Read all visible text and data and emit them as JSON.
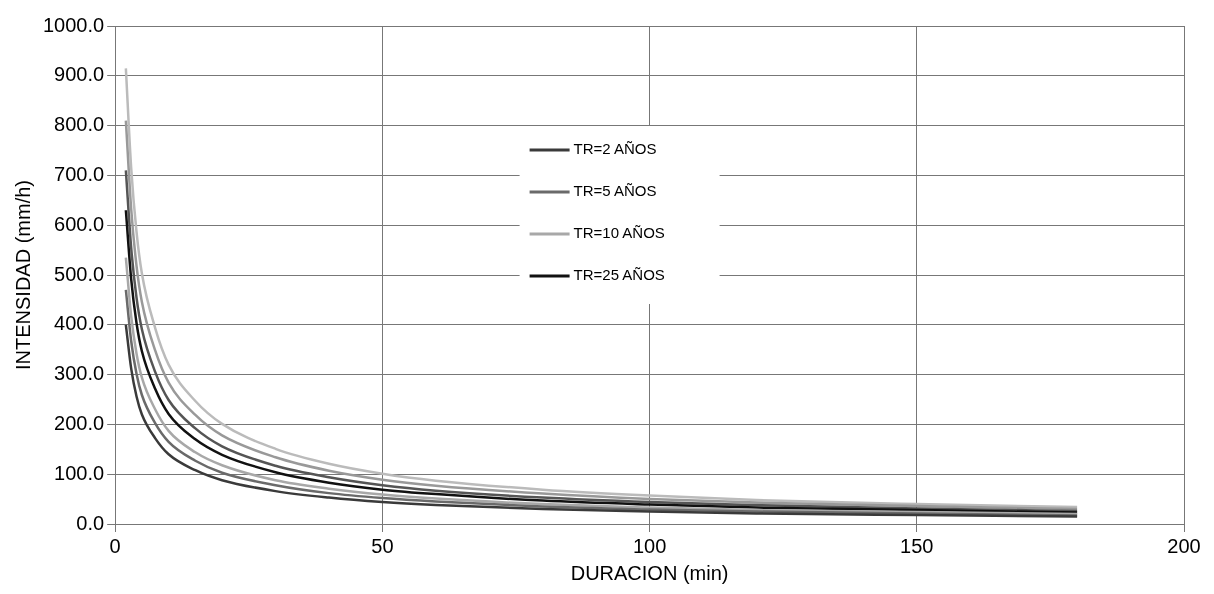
{
  "chart_data": {
    "type": "line",
    "xlabel": "DURACION (min)",
    "ylabel": "INTENSIDAD (mm/h)",
    "x": [
      2,
      3,
      4,
      5,
      7.5,
      10,
      15,
      20,
      30,
      40,
      50,
      60,
      80,
      100,
      120,
      150,
      180
    ],
    "series": [
      {
        "name": "TR=2 AÑOS",
        "color": "#3a3a3a",
        "values": [
          400,
          312,
          256,
          220,
          172,
          140,
          108,
          88,
          66,
          53,
          44,
          38,
          30,
          25,
          21,
          18,
          15
        ]
      },
      {
        "name": "TR=5 AÑOS",
        "color": "#6a6a6a",
        "values": [
          470,
          367,
          301,
          259,
          202,
          165,
          127,
          103,
          78,
          62,
          52,
          45,
          35,
          29,
          25,
          21,
          17
        ]
      },
      {
        "name": "TR=10 AÑOS",
        "color": "#a8a8a8",
        "values": [
          535,
          417,
          342,
          294,
          230,
          187,
          144,
          118,
          88,
          71,
          59,
          51,
          40,
          33,
          28,
          24,
          20
        ]
      },
      {
        "name": "TR=25 AÑOS",
        "color": "#111111",
        "values": [
          630,
          491,
          403,
          347,
          271,
          221,
          170,
          139,
          104,
          83,
          69,
          60,
          47,
          39,
          33,
          28,
          23
        ]
      },
      {
        "color": "#555555",
        "values": [
          710,
          554,
          454,
          391,
          305,
          249,
          192,
          156,
          117,
          94,
          78,
          67,
          53,
          44,
          38,
          31,
          26
        ]
      },
      {
        "color": "#999999",
        "values": [
          810,
          632,
          518,
          446,
          348,
          284,
          219,
          178,
          134,
          107,
          89,
          77,
          61,
          50,
          43,
          36,
          30
        ]
      },
      {
        "color": "#bbbbbb",
        "values": [
          915,
          714,
          586,
          503,
          393,
          320,
          247,
          201,
          151,
          121,
          101,
          87,
          69,
          57,
          48,
          40,
          34
        ]
      }
    ],
    "xlim": [
      0,
      200
    ],
    "xticks": [
      0,
      50,
      100,
      150,
      200
    ],
    "ylim": [
      0,
      1000
    ],
    "yticks": [
      {
        "value": 0,
        "label": "0.0"
      },
      {
        "value": 100,
        "label": "100.0"
      },
      {
        "value": 200,
        "label": "200.0"
      },
      {
        "value": 300,
        "label": "300.0"
      },
      {
        "value": 400,
        "label": "400.0"
      },
      {
        "value": 500,
        "label": "500.0"
      },
      {
        "value": 600,
        "label": "600.0"
      },
      {
        "value": 700,
        "label": "700.0"
      },
      {
        "value": 800,
        "label": "800.0"
      },
      {
        "value": 900,
        "label": "900.0"
      },
      {
        "value": 1000,
        "label": "1000.0"
      }
    ],
    "grid": true,
    "legend": "top",
    "marker": "none",
    "line_style": "solid"
  }
}
